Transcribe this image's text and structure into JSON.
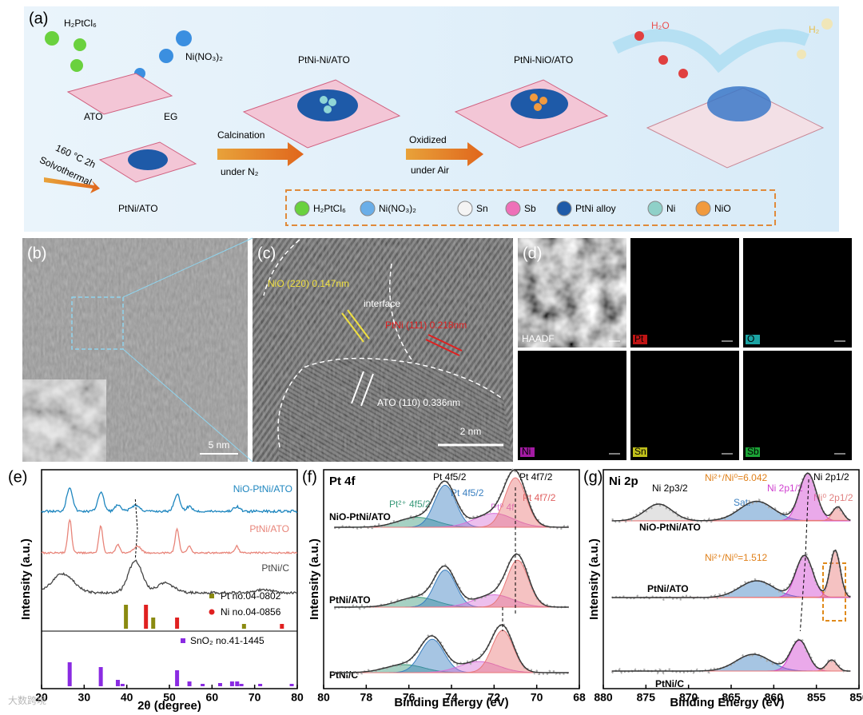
{
  "panel_a": {
    "label": "(a)",
    "reagent_pt": "H₂PtCl₆",
    "reagent_ni": "Ni(NO₃)₂",
    "substrate": "ATO",
    "solvent": "EG",
    "condition": "160 °C  2h",
    "method": "Solvothermal",
    "stage1": "PtNi/ATO",
    "step1": "Calcination",
    "step1_gas": "under N₂",
    "stage2": "PtNi-Ni/ATO",
    "step2": "Oxidized",
    "step2_gas": "under Air",
    "stage3": "PtNi-NiO/ATO",
    "reactant": "H₂O",
    "product": "H₂",
    "legend": [
      "H₂PtCl₆",
      "Ni(NO₃)₂",
      "Sn",
      "Sb",
      "PtNi alloy",
      "Ni",
      "NiO"
    ]
  },
  "panel_b": {
    "label": "(b)",
    "scale": "5 nm"
  },
  "panel_c": {
    "label": "(c)",
    "nio": "NiO  (220) 0.147nm",
    "interface": "interface",
    "ptni": "PtNi (111) 0.218nm",
    "ato": "ATO (110) 0.336nm",
    "scale": "2 nm"
  },
  "panel_d": {
    "label": "(d)",
    "maps": [
      "HAADF",
      "Pt",
      "O",
      "Ni",
      "Sn",
      "Sb"
    ]
  },
  "panel_e": {
    "label": "(e)",
    "xlabel": "2θ (degree)",
    "ylabel": "Intensity (a.u.)",
    "xlim": [
      20,
      80
    ],
    "xticks": [
      20,
      30,
      40,
      50,
      60,
      70,
      80
    ],
    "samples": [
      "NiO-PtNi/ATO",
      "PtNi/ATO",
      "PtNi/C"
    ],
    "references": [
      "Pt no.04-0802",
      "Ni no.04-0856",
      "SnO₂ no.41-1445"
    ]
  },
  "panel_f": {
    "label": "(f)",
    "title": "Pt 4f",
    "xlabel": "Binding Energy (eV)",
    "ylabel": "Intensity (a.u.)",
    "xlim": [
      80,
      68
    ],
    "xticks": [
      80,
      78,
      76,
      74,
      72,
      70,
      68
    ],
    "samples": [
      "NiO-PtNi/ATO",
      "PtNi/ATO",
      "PtNi/C"
    ],
    "peak_labels": [
      "Pt 4f5/2",
      "Pt 4f7/2",
      "Pt²⁺ 4f5/2",
      "Pt 4f5/2",
      "Pt⁰ 4f",
      "Pt 4f7/2"
    ]
  },
  "panel_g": {
    "label": "(g)",
    "title": "Ni 2p",
    "xlabel": "Binding Energy (eV)",
    "ylabel": "Intensity (a.u.)",
    "xlim": [
      880,
      850
    ],
    "xticks": [
      880,
      875,
      870,
      865,
      860,
      855,
      850
    ],
    "samples": [
      "NiO-PtNi/ATO",
      "PtNi/ATO",
      "PtNi/C"
    ],
    "peak_labels": [
      "Ni 2p3/2",
      "Ni 2p1/2",
      "Sat.",
      "Ni 2p1/2",
      "Ni⁰ 2p1/2"
    ],
    "ratio_1": "Ni²⁺/Ni⁰=6.042",
    "ratio_2": "Ni²⁺/Ni⁰=1.512"
  },
  "watermark": "大数跨境"
}
